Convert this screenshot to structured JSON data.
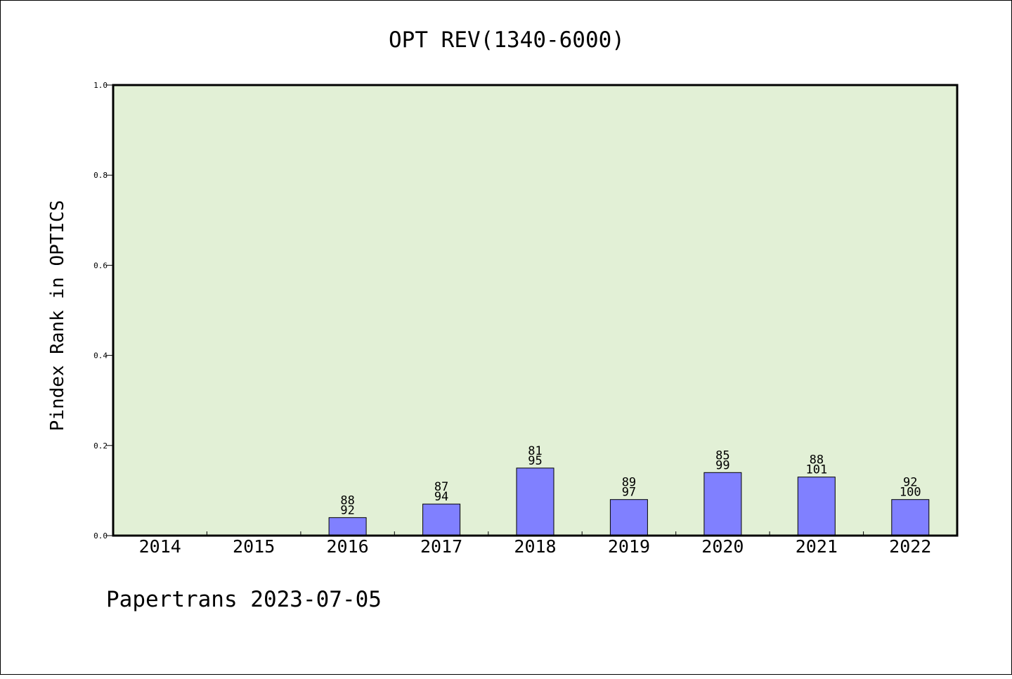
{
  "footer": "Papertrans 2023-07-05",
  "colors": {
    "plot_background": "#e2f0d6",
    "bar_fill": "#8080ff",
    "bar_stroke": "#000000",
    "axis": "#000000"
  },
  "chart_data": {
    "type": "bar",
    "title": "OPT REV(1340-6000)",
    "xlabel": "",
    "ylabel": "Pindex Rank in OPTICS",
    "ylim": [
      0,
      1.0
    ],
    "y_ticks": [
      "0.0",
      "0.2",
      "0.4",
      "0.6",
      "0.8",
      "1.0"
    ],
    "grid": false,
    "categories": [
      "2014",
      "2015",
      "2016",
      "2017",
      "2018",
      "2019",
      "2020",
      "2021",
      "2022"
    ],
    "values": [
      0,
      0,
      0.04,
      0.07,
      0.15,
      0.08,
      0.14,
      0.13,
      0.08
    ],
    "label_top": [
      null,
      null,
      "88",
      "87",
      "81",
      "89",
      "85",
      "88",
      "92"
    ],
    "label_bottom": [
      null,
      null,
      "92",
      "94",
      "95",
      "97",
      "99",
      "101",
      "100"
    ]
  }
}
